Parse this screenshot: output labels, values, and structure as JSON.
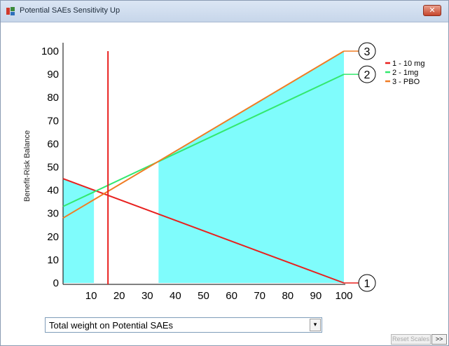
{
  "window": {
    "title": "Potential SAEs Sensitivity Up",
    "close_glyph": "✕"
  },
  "controls": {
    "dropdown_value": "Total weight on Potential SAEs",
    "dropdown_arrow": "▾",
    "reset_scales_label": "Reset Scales",
    "more_label": ">>"
  },
  "chart_data": {
    "type": "line",
    "title": "",
    "xlabel": "",
    "ylabel": "Benefit-Risk Balance",
    "xlim": [
      0,
      100
    ],
    "ylim": [
      0,
      100
    ],
    "x_ticks": [
      10,
      20,
      30,
      40,
      50,
      60,
      70,
      80,
      90,
      100
    ],
    "y_ticks": [
      0,
      10,
      20,
      30,
      40,
      50,
      60,
      70,
      80,
      90,
      100
    ],
    "grid": false,
    "legend_position": "top-right",
    "series": [
      {
        "id": "1",
        "name": "1 - 10 mg",
        "color": "#e8201e",
        "x": [
          0,
          100
        ],
        "y": [
          45,
          0
        ],
        "end_label": "1"
      },
      {
        "id": "2",
        "name": "2 - 1mg",
        "color": "#33e86e",
        "x": [
          0,
          100
        ],
        "y": [
          33,
          90
        ],
        "end_label": "2"
      },
      {
        "id": "3",
        "name": "3 - PBO",
        "color": "#f07d24",
        "x": [
          0,
          100
        ],
        "y": [
          28,
          100
        ],
        "end_label": "3"
      }
    ],
    "shaded_regions": [
      {
        "color": "#7ffcfc",
        "x_from": 0,
        "x_to": 11
      },
      {
        "color": "#7ffcfc",
        "x_from": 34,
        "x_to": 100
      }
    ],
    "reference_line": {
      "x": 16,
      "color": "#e8201e"
    }
  }
}
